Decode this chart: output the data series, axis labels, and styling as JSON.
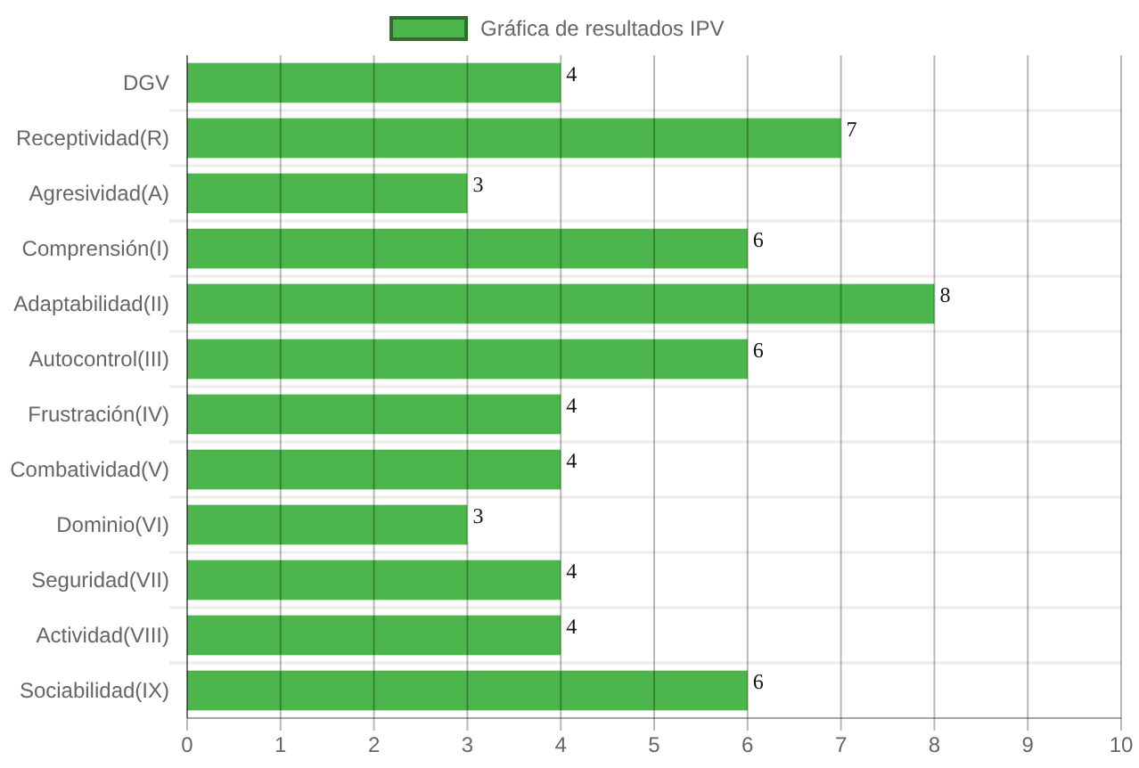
{
  "chart_data": {
    "type": "bar",
    "orientation": "horizontal",
    "categories": [
      "DGV",
      "Receptividad(R)",
      "Agresividad(A)",
      "Comprensión(I)",
      "Adaptabilidad(II)",
      "Autocontrol(III)",
      "Frustración(IV)",
      "Combatividad(V)",
      "Dominio(VI)",
      "Seguridad(VII)",
      "Actividad(VIII)",
      "Sociabilidad(IX)"
    ],
    "series": [
      {
        "name": "Gráfica de resultados IPV",
        "color": "#4cb54c",
        "values": [
          4,
          7,
          3,
          6,
          8,
          6,
          4,
          4,
          3,
          4,
          4,
          6
        ]
      }
    ],
    "xlim": [
      0,
      10
    ],
    "xticks": [
      0,
      1,
      2,
      3,
      4,
      5,
      6,
      7,
      8,
      9,
      10
    ],
    "grid": true,
    "legend": "top",
    "data_labels": true
  }
}
